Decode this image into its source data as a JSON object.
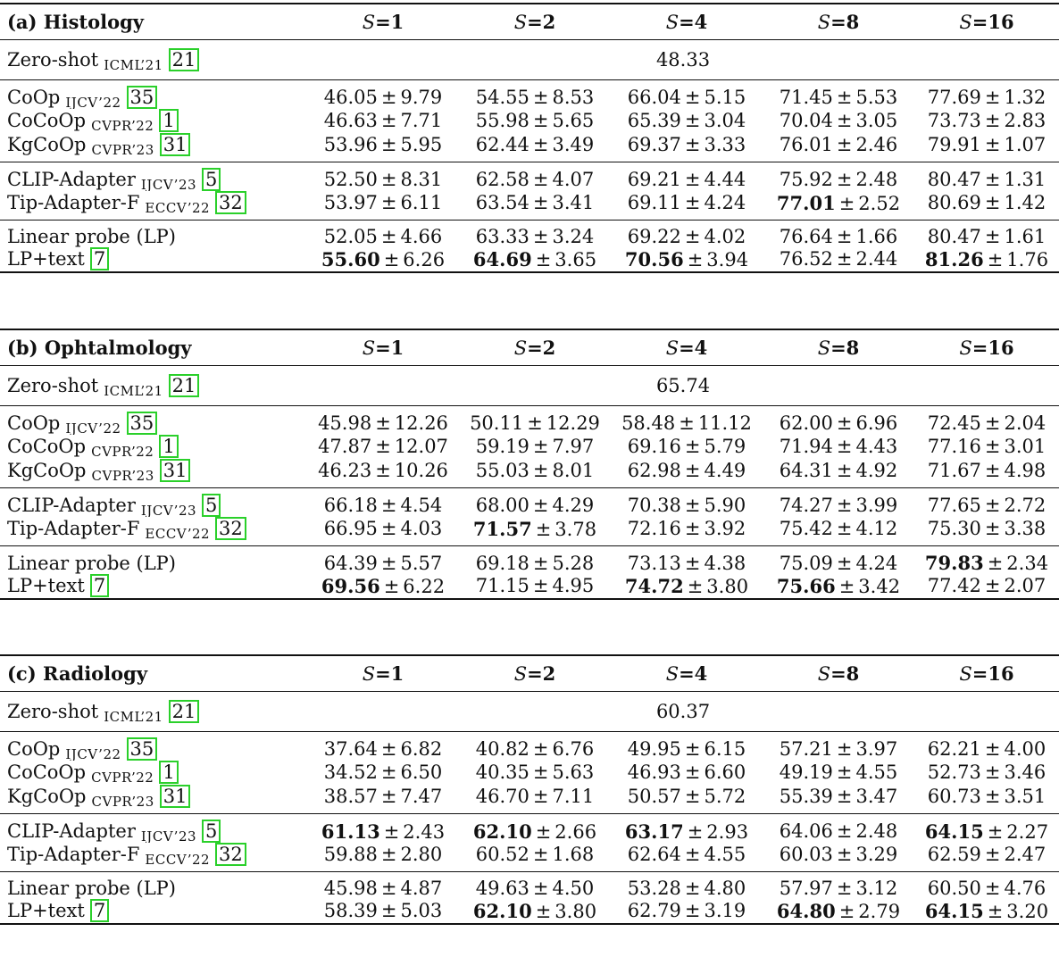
{
  "pm": "±",
  "panels": [
    {
      "title": "(a) Histology",
      "shots": [
        "S=1",
        "S=2",
        "S=4",
        "S=8",
        "S=16"
      ],
      "zeroshot": {
        "method": "Zero-shot",
        "venue": "ICML’21",
        "cite": "21",
        "value": "48.33"
      },
      "groups": [
        [
          {
            "method": "CoOp",
            "venue": "IJCV’22",
            "cite": "35",
            "vals": [
              [
                "46.05",
                "9.79"
              ],
              [
                "54.55",
                "8.53"
              ],
              [
                "66.04",
                "5.15"
              ],
              [
                "71.45",
                "5.53"
              ],
              [
                "77.69",
                "1.32"
              ]
            ],
            "bold": [
              false,
              false,
              false,
              false,
              false
            ]
          },
          {
            "method": "CoCoOp",
            "venue": "CVPR’22",
            "cite": "1",
            "vals": [
              [
                "46.63",
                "7.71"
              ],
              [
                "55.98",
                "5.65"
              ],
              [
                "65.39",
                "3.04"
              ],
              [
                "70.04",
                "3.05"
              ],
              [
                "73.73",
                "2.83"
              ]
            ],
            "bold": [
              false,
              false,
              false,
              false,
              false
            ]
          },
          {
            "method": "KgCoOp",
            "venue": "CVPR’23",
            "cite": "31",
            "vals": [
              [
                "53.96",
                "5.95"
              ],
              [
                "62.44",
                "3.49"
              ],
              [
                "69.37",
                "3.33"
              ],
              [
                "76.01",
                "2.46"
              ],
              [
                "79.91",
                "1.07"
              ]
            ],
            "bold": [
              false,
              false,
              false,
              false,
              false
            ]
          }
        ],
        [
          {
            "method": "CLIP-Adapter",
            "venue": "IJCV’23",
            "cite": "5",
            "vals": [
              [
                "52.50",
                "8.31"
              ],
              [
                "62.58",
                "4.07"
              ],
              [
                "69.21",
                "4.44"
              ],
              [
                "75.92",
                "2.48"
              ],
              [
                "80.47",
                "1.31"
              ]
            ],
            "bold": [
              false,
              false,
              false,
              false,
              false
            ]
          },
          {
            "method": "Tip-Adapter-F",
            "venue": "ECCV’22",
            "cite": "32",
            "vals": [
              [
                "53.97",
                "6.11"
              ],
              [
                "63.54",
                "3.41"
              ],
              [
                "69.11",
                "4.24"
              ],
              [
                "77.01",
                "2.52"
              ],
              [
                "80.69",
                "1.42"
              ]
            ],
            "bold": [
              false,
              false,
              false,
              true,
              false
            ]
          }
        ],
        [
          {
            "method": "Linear probe (LP)",
            "venue": "",
            "cite": "",
            "vals": [
              [
                "52.05",
                "4.66"
              ],
              [
                "63.33",
                "3.24"
              ],
              [
                "69.22",
                "4.02"
              ],
              [
                "76.64",
                "1.66"
              ],
              [
                "80.47",
                "1.61"
              ]
            ],
            "bold": [
              false,
              false,
              false,
              false,
              false
            ]
          },
          {
            "method": "LP+text",
            "venue": "",
            "cite": "7",
            "vals": [
              [
                "55.60",
                "6.26"
              ],
              [
                "64.69",
                "3.65"
              ],
              [
                "70.56",
                "3.94"
              ],
              [
                "76.52",
                "2.44"
              ],
              [
                "81.26",
                "1.76"
              ]
            ],
            "bold": [
              true,
              true,
              true,
              false,
              true
            ]
          }
        ]
      ]
    },
    {
      "title": "(b) Ophtalmology",
      "shots": [
        "S=1",
        "S=2",
        "S=4",
        "S=8",
        "S=16"
      ],
      "zeroshot": {
        "method": "Zero-shot",
        "venue": "ICML’21",
        "cite": "21",
        "value": "65.74"
      },
      "groups": [
        [
          {
            "method": "CoOp",
            "venue": "IJCV’22",
            "cite": "35",
            "vals": [
              [
                "45.98",
                "12.26"
              ],
              [
                "50.11",
                "12.29"
              ],
              [
                "58.48",
                "11.12"
              ],
              [
                "62.00",
                "6.96"
              ],
              [
                "72.45",
                "2.04"
              ]
            ],
            "bold": [
              false,
              false,
              false,
              false,
              false
            ]
          },
          {
            "method": "CoCoOp",
            "venue": "CVPR’22",
            "cite": "1",
            "vals": [
              [
                "47.87",
                "12.07"
              ],
              [
                "59.19",
                "7.97"
              ],
              [
                "69.16",
                "5.79"
              ],
              [
                "71.94",
                "4.43"
              ],
              [
                "77.16",
                "3.01"
              ]
            ],
            "bold": [
              false,
              false,
              false,
              false,
              false
            ]
          },
          {
            "method": "KgCoOp",
            "venue": "CVPR’23",
            "cite": "31",
            "vals": [
              [
                "46.23",
                "10.26"
              ],
              [
                "55.03",
                "8.01"
              ],
              [
                "62.98",
                "4.49"
              ],
              [
                "64.31",
                "4.92"
              ],
              [
                "71.67",
                "4.98"
              ]
            ],
            "bold": [
              false,
              false,
              false,
              false,
              false
            ]
          }
        ],
        [
          {
            "method": "CLIP-Adapter",
            "venue": "IJCV’23",
            "cite": "5",
            "vals": [
              [
                "66.18",
                "4.54"
              ],
              [
                "68.00",
                "4.29"
              ],
              [
                "70.38",
                "5.90"
              ],
              [
                "74.27",
                "3.99"
              ],
              [
                "77.65",
                "2.72"
              ]
            ],
            "bold": [
              false,
              false,
              false,
              false,
              false
            ]
          },
          {
            "method": "Tip-Adapter-F",
            "venue": "ECCV’22",
            "cite": "32",
            "vals": [
              [
                "66.95",
                "4.03"
              ],
              [
                "71.57",
                "3.78"
              ],
              [
                "72.16",
                "3.92"
              ],
              [
                "75.42",
                "4.12"
              ],
              [
                "75.30",
                "3.38"
              ]
            ],
            "bold": [
              false,
              true,
              false,
              false,
              false
            ]
          }
        ],
        [
          {
            "method": "Linear probe (LP)",
            "venue": "",
            "cite": "",
            "vals": [
              [
                "64.39",
                "5.57"
              ],
              [
                "69.18",
                "5.28"
              ],
              [
                "73.13",
                "4.38"
              ],
              [
                "75.09",
                "4.24"
              ],
              [
                "79.83",
                "2.34"
              ]
            ],
            "bold": [
              false,
              false,
              false,
              false,
              true
            ]
          },
          {
            "method": "LP+text",
            "venue": "",
            "cite": "7",
            "vals": [
              [
                "69.56",
                "6.22"
              ],
              [
                "71.15",
                "4.95"
              ],
              [
                "74.72",
                "3.80"
              ],
              [
                "75.66",
                "3.42"
              ],
              [
                "77.42",
                "2.07"
              ]
            ],
            "bold": [
              true,
              false,
              true,
              true,
              false
            ]
          }
        ]
      ]
    },
    {
      "title": "(c) Radiology",
      "shots": [
        "S=1",
        "S=2",
        "S=4",
        "S=8",
        "S=16"
      ],
      "zeroshot": {
        "method": "Zero-shot",
        "venue": "ICML’21",
        "cite": "21",
        "value": "60.37"
      },
      "groups": [
        [
          {
            "method": "CoOp",
            "venue": "IJCV’22",
            "cite": "35",
            "vals": [
              [
                "37.64",
                "6.82"
              ],
              [
                "40.82",
                "6.76"
              ],
              [
                "49.95",
                "6.15"
              ],
              [
                "57.21",
                "3.97"
              ],
              [
                "62.21",
                "4.00"
              ]
            ],
            "bold": [
              false,
              false,
              false,
              false,
              false
            ]
          },
          {
            "method": "CoCoOp",
            "venue": "CVPR’22",
            "cite": "1",
            "vals": [
              [
                "34.52",
                "6.50"
              ],
              [
                "40.35",
                "5.63"
              ],
              [
                "46.93",
                "6.60"
              ],
              [
                "49.19",
                "4.55"
              ],
              [
                "52.73",
                "3.46"
              ]
            ],
            "bold": [
              false,
              false,
              false,
              false,
              false
            ]
          },
          {
            "method": "KgCoOp",
            "venue": "CVPR’23",
            "cite": "31",
            "vals": [
              [
                "38.57",
                "7.47"
              ],
              [
                "46.70",
                "7.11"
              ],
              [
                "50.57",
                "5.72"
              ],
              [
                "55.39",
                "3.47"
              ],
              [
                "60.73",
                "3.51"
              ]
            ],
            "bold": [
              false,
              false,
              false,
              false,
              false
            ]
          }
        ],
        [
          {
            "method": "CLIP-Adapter",
            "venue": "IJCV’23",
            "cite": "5",
            "vals": [
              [
                "61.13",
                "2.43"
              ],
              [
                "62.10",
                "2.66"
              ],
              [
                "63.17",
                "2.93"
              ],
              [
                "64.06",
                "2.48"
              ],
              [
                "64.15",
                "2.27"
              ]
            ],
            "bold": [
              true,
              true,
              true,
              false,
              true
            ]
          },
          {
            "method": "Tip-Adapter-F",
            "venue": "ECCV’22",
            "cite": "32",
            "vals": [
              [
                "59.88",
                "2.80"
              ],
              [
                "60.52",
                "1.68"
              ],
              [
                "62.64",
                "4.55"
              ],
              [
                "60.03",
                "3.29"
              ],
              [
                "62.59",
                "2.47"
              ]
            ],
            "bold": [
              false,
              false,
              false,
              false,
              false
            ]
          }
        ],
        [
          {
            "method": "Linear probe (LP)",
            "venue": "",
            "cite": "",
            "vals": [
              [
                "45.98",
                "4.87"
              ],
              [
                "49.63",
                "4.50"
              ],
              [
                "53.28",
                "4.80"
              ],
              [
                "57.97",
                "3.12"
              ],
              [
                "60.50",
                "4.76"
              ]
            ],
            "bold": [
              false,
              false,
              false,
              false,
              false
            ]
          },
          {
            "method": "LP+text",
            "venue": "",
            "cite": "7",
            "vals": [
              [
                "58.39",
                "5.03"
              ],
              [
                "62.10",
                "3.80"
              ],
              [
                "62.79",
                "3.19"
              ],
              [
                "64.80",
                "2.79"
              ],
              [
                "64.15",
                "3.20"
              ]
            ],
            "bold": [
              false,
              true,
              false,
              true,
              true
            ]
          }
        ]
      ]
    }
  ]
}
